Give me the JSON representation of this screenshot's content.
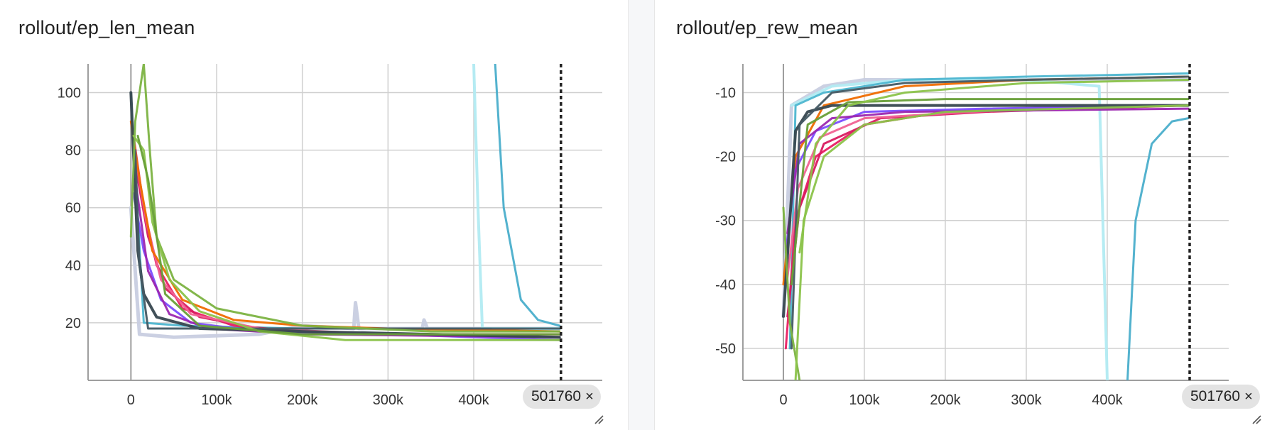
{
  "step_marker": {
    "label": "501760",
    "close_glyph": "×"
  },
  "colors": {
    "grid": "#d0d0d0",
    "axis": "#9e9e9e",
    "marker_line": "#212121"
  },
  "chart_data": [
    {
      "type": "line",
      "title": "rollout/ep_len_mean",
      "x_ticks": [
        "0",
        "100k",
        "200k",
        "300k",
        "400k"
      ],
      "x_tick_values": [
        0,
        100000,
        200000,
        300000,
        400000
      ],
      "y_ticks": [
        "20",
        "40",
        "60",
        "80",
        "100"
      ],
      "y_tick_values": [
        20,
        40,
        60,
        80,
        100
      ],
      "xlim": [
        -50000,
        550000
      ],
      "ylim": [
        0,
        110
      ],
      "grid": true,
      "step_marker_x": 501760,
      "series": [
        {
          "color": "#c8cde0",
          "width": 5,
          "points": [
            [
              0,
              60
            ],
            [
              10000,
              16
            ],
            [
              50000,
              15
            ],
            [
              150000,
              16
            ],
            [
              200000,
              19
            ],
            [
              260000,
              18
            ],
            [
              262000,
              27
            ],
            [
              266000,
              18
            ],
            [
              300000,
              18
            ],
            [
              340000,
              18
            ],
            [
              342000,
              21
            ],
            [
              346000,
              18
            ],
            [
              400000,
              18
            ],
            [
              500000,
              18
            ]
          ]
        },
        {
          "color": "#b2ebf2",
          "width": 4,
          "points": [
            [
              400000,
              110
            ],
            [
              405000,
              60
            ],
            [
              410000,
              18
            ],
            [
              420000,
              18
            ],
            [
              500000,
              18
            ]
          ]
        },
        {
          "color": "#4db6d0",
          "width": 3,
          "points": [
            [
              0,
              100
            ],
            [
              15000,
              20
            ],
            [
              60000,
              19
            ],
            [
              200000,
              18
            ],
            [
              420000,
              18
            ]
          ]
        },
        {
          "color": "#4aaecb",
          "width": 3,
          "points": [
            [
              425000,
              110
            ],
            [
              435000,
              60
            ],
            [
              455000,
              28
            ],
            [
              475000,
              21
            ],
            [
              500000,
              19
            ]
          ]
        },
        {
          "color": "#e91e63",
          "width": 3,
          "points": [
            [
              3000,
              85
            ],
            [
              15000,
              60
            ],
            [
              30000,
              40
            ],
            [
              60000,
              25
            ],
            [
              120000,
              19
            ],
            [
              200000,
              17
            ],
            [
              300000,
              16
            ],
            [
              500000,
              15
            ]
          ]
        },
        {
          "color": "#d81b60",
          "width": 3,
          "points": [
            [
              5000,
              75
            ],
            [
              20000,
              50
            ],
            [
              40000,
              32
            ],
            [
              80000,
              22
            ],
            [
              150000,
              18
            ],
            [
              250000,
              16
            ],
            [
              500000,
              15
            ]
          ]
        },
        {
          "color": "#f06292",
          "width": 3,
          "points": [
            [
              4000,
              80
            ],
            [
              18000,
              55
            ],
            [
              35000,
              35
            ],
            [
              70000,
              23
            ],
            [
              150000,
              18
            ],
            [
              300000,
              16
            ],
            [
              500000,
              16
            ]
          ]
        },
        {
          "color": "#ef6c00",
          "width": 3,
          "points": [
            [
              0,
              90
            ],
            [
              10000,
              70
            ],
            [
              25000,
              45
            ],
            [
              60000,
              28
            ],
            [
              120000,
              21
            ],
            [
              200000,
              19
            ],
            [
              300000,
              18
            ],
            [
              500000,
              17
            ]
          ]
        },
        {
          "color": "#7c4dff",
          "width": 3,
          "points": [
            [
              3000,
              65
            ],
            [
              15000,
              45
            ],
            [
              35000,
              28
            ],
            [
              70000,
              20
            ],
            [
              150000,
              17
            ],
            [
              300000,
              16
            ],
            [
              500000,
              14
            ]
          ]
        },
        {
          "color": "#9c27b0",
          "width": 3,
          "points": [
            [
              5000,
              70
            ],
            [
              20000,
              38
            ],
            [
              45000,
              23
            ],
            [
              90000,
              18
            ],
            [
              200000,
              16
            ],
            [
              500000,
              15
            ]
          ]
        },
        {
          "color": "#37474f",
          "width": 4,
          "points": [
            [
              0,
              100
            ],
            [
              8000,
              45
            ],
            [
              15000,
              30
            ],
            [
              30000,
              22
            ],
            [
              80000,
              18
            ],
            [
              200000,
              17
            ],
            [
              350000,
              16
            ],
            [
              500000,
              15
            ]
          ]
        },
        {
          "color": "#455a64",
          "width": 3,
          "points": [
            [
              5000,
              80
            ],
            [
              10000,
              40
            ],
            [
              20000,
              18
            ],
            [
              80000,
              18
            ],
            [
              300000,
              18
            ],
            [
              500000,
              18
            ]
          ]
        },
        {
          "color": "#7cb342",
          "width": 3,
          "points": [
            [
              0,
              50
            ],
            [
              5000,
              90
            ],
            [
              15000,
              110
            ],
            [
              22000,
              80
            ],
            [
              30000,
              50
            ],
            [
              50000,
              35
            ],
            [
              100000,
              25
            ],
            [
              200000,
              19
            ],
            [
              350000,
              17
            ],
            [
              500000,
              17
            ]
          ]
        },
        {
          "color": "#8bc34a",
          "width": 3,
          "points": [
            [
              3000,
              85
            ],
            [
              15000,
              80
            ],
            [
              25000,
              55
            ],
            [
              45000,
              35
            ],
            [
              80000,
              24
            ],
            [
              150000,
              17
            ],
            [
              250000,
              14
            ],
            [
              500000,
              14
            ]
          ]
        },
        {
          "color": "#689f38",
          "width": 3,
          "points": [
            [
              8000,
              85
            ],
            [
              20000,
              70
            ],
            [
              40000,
              30
            ],
            [
              80000,
              19
            ],
            [
              200000,
              16
            ],
            [
              500000,
              16
            ]
          ]
        }
      ]
    },
    {
      "type": "line",
      "title": "rollout/ep_rew_mean",
      "x_ticks": [
        "0",
        "100k",
        "200k",
        "300k",
        "400k"
      ],
      "x_tick_values": [
        0,
        100000,
        200000,
        300000,
        400000
      ],
      "y_ticks": [
        "-10",
        "-20",
        "-30",
        "-40",
        "-50"
      ],
      "y_tick_values": [
        -10,
        -20,
        -30,
        -40,
        -50
      ],
      "xlim": [
        -50000,
        550000
      ],
      "ylim": [
        -55,
        -5.5
      ],
      "grid": true,
      "step_marker_x": 501760,
      "series": [
        {
          "color": "#c8cde0",
          "width": 5,
          "points": [
            [
              0,
              -45
            ],
            [
              10000,
              -12
            ],
            [
              50000,
              -9
            ],
            [
              100000,
              -8
            ],
            [
              200000,
              -8
            ],
            [
              300000,
              -8
            ],
            [
              400000,
              -8
            ],
            [
              500000,
              -8
            ]
          ]
        },
        {
          "color": "#b2ebf2",
          "width": 4,
          "points": [
            [
              10000,
              -12
            ],
            [
              60000,
              -9
            ],
            [
              150000,
              -8
            ],
            [
              300000,
              -8
            ],
            [
              390000,
              -9
            ],
            [
              400000,
              -55
            ]
          ]
        },
        {
          "color": "#4db6d0",
          "width": 3,
          "points": [
            [
              8000,
              -50
            ],
            [
              15000,
              -12
            ],
            [
              50000,
              -10
            ],
            [
              150000,
              -8
            ],
            [
              300000,
              -7.5
            ],
            [
              500000,
              -7
            ]
          ]
        },
        {
          "color": "#4aaecb",
          "width": 3,
          "points": [
            [
              425000,
              -55
            ],
            [
              435000,
              -30
            ],
            [
              455000,
              -18
            ],
            [
              480000,
              -14.5
            ],
            [
              500000,
              -14
            ]
          ]
        },
        {
          "color": "#e91e63",
          "width": 3,
          "points": [
            [
              3000,
              -50
            ],
            [
              15000,
              -30
            ],
            [
              40000,
              -20
            ],
            [
              100000,
              -15
            ],
            [
              200000,
              -13
            ],
            [
              300000,
              -12.5
            ],
            [
              500000,
              -12
            ]
          ]
        },
        {
          "color": "#d81b60",
          "width": 3,
          "points": [
            [
              5000,
              -45
            ],
            [
              20000,
              -28
            ],
            [
              50000,
              -18
            ],
            [
              120000,
              -14
            ],
            [
              250000,
              -13
            ],
            [
              500000,
              -12
            ]
          ]
        },
        {
          "color": "#f06292",
          "width": 3,
          "points": [
            [
              4000,
              -40
            ],
            [
              18000,
              -25
            ],
            [
              45000,
              -17
            ],
            [
              100000,
              -14
            ],
            [
              300000,
              -12.5
            ],
            [
              500000,
              -12
            ]
          ]
        },
        {
          "color": "#ef6c00",
          "width": 3,
          "points": [
            [
              0,
              -40
            ],
            [
              15000,
              -20
            ],
            [
              50000,
              -12
            ],
            [
              150000,
              -9
            ],
            [
              300000,
              -8
            ],
            [
              500000,
              -7.5
            ]
          ]
        },
        {
          "color": "#7c4dff",
          "width": 3,
          "points": [
            [
              3000,
              -35
            ],
            [
              15000,
              -22
            ],
            [
              40000,
              -16
            ],
            [
              100000,
              -13
            ],
            [
              250000,
              -12.5
            ],
            [
              500000,
              -12
            ]
          ]
        },
        {
          "color": "#9c27b0",
          "width": 3,
          "points": [
            [
              5000,
              -32
            ],
            [
              20000,
              -18
            ],
            [
              60000,
              -14
            ],
            [
              150000,
              -13
            ],
            [
              500000,
              -12.5
            ]
          ]
        },
        {
          "color": "#37474f",
          "width": 4,
          "points": [
            [
              0,
              -45
            ],
            [
              8000,
              -30
            ],
            [
              15000,
              -16
            ],
            [
              30000,
              -13
            ],
            [
              60000,
              -12
            ],
            [
              200000,
              -12
            ],
            [
              500000,
              -12
            ]
          ]
        },
        {
          "color": "#455a64",
          "width": 3,
          "points": [
            [
              10000,
              -50
            ],
            [
              20000,
              -15
            ],
            [
              60000,
              -10
            ],
            [
              150000,
              -8.5
            ],
            [
              300000,
              -8
            ],
            [
              500000,
              -7.5
            ]
          ]
        },
        {
          "color": "#7cb342",
          "width": 3,
          "points": [
            [
              0,
              -28
            ],
            [
              8000,
              -46
            ],
            [
              20000,
              -55
            ]
          ]
        },
        {
          "color": "#8bc34a",
          "width": 3,
          "points": [
            [
              15000,
              -55
            ],
            [
              25000,
              -30
            ],
            [
              50000,
              -20
            ],
            [
              100000,
              -15
            ],
            [
              200000,
              -13
            ],
            [
              350000,
              -12.5
            ],
            [
              500000,
              -12
            ]
          ]
        },
        {
          "color": "#689f38",
          "width": 3,
          "points": [
            [
              10000,
              -40
            ],
            [
              30000,
              -15
            ],
            [
              80000,
              -11.5
            ],
            [
              200000,
              -11
            ],
            [
              500000,
              -11
            ]
          ]
        },
        {
          "color": "#8bc34a",
          "width": 3,
          "points": [
            [
              20000,
              -35
            ],
            [
              40000,
              -18
            ],
            [
              80000,
              -12
            ],
            [
              150000,
              -10
            ],
            [
              300000,
              -8.5
            ],
            [
              500000,
              -8
            ]
          ]
        }
      ]
    }
  ]
}
